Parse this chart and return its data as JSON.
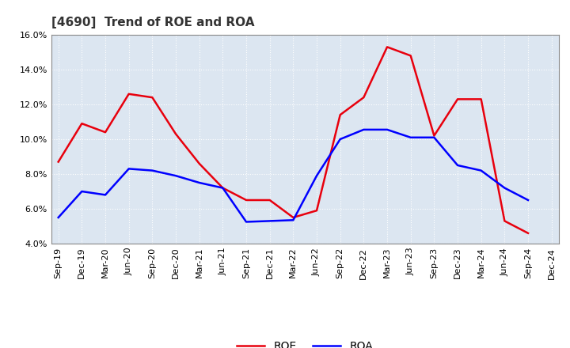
{
  "title": "[4690]  Trend of ROE and ROA",
  "x_labels": [
    "Sep-19",
    "Dec-19",
    "Mar-20",
    "Jun-20",
    "Sep-20",
    "Dec-20",
    "Mar-21",
    "Jun-21",
    "Sep-21",
    "Dec-21",
    "Mar-22",
    "Jun-22",
    "Sep-22",
    "Dec-22",
    "Mar-23",
    "Jun-23",
    "Sep-23",
    "Dec-23",
    "Mar-24",
    "Jun-24",
    "Sep-24",
    "Dec-24"
  ],
  "roe": [
    8.7,
    10.9,
    10.4,
    12.6,
    12.4,
    10.3,
    8.6,
    7.2,
    6.5,
    6.5,
    5.5,
    5.9,
    11.4,
    12.4,
    15.3,
    14.8,
    10.2,
    12.3,
    12.3,
    5.3,
    4.6,
    null
  ],
  "roa": [
    5.5,
    7.0,
    6.8,
    8.3,
    8.2,
    7.9,
    7.5,
    7.2,
    5.25,
    5.3,
    5.35,
    7.9,
    10.0,
    10.55,
    10.55,
    10.1,
    10.1,
    8.5,
    8.2,
    7.2,
    6.5,
    null
  ],
  "roe_color": "#e8000d",
  "roa_color": "#0000ff",
  "ylim": [
    4.0,
    16.0
  ],
  "yticks": [
    4.0,
    6.0,
    8.0,
    10.0,
    12.0,
    14.0,
    16.0
  ],
  "background_color": "#ffffff",
  "plot_bg_color": "#dce6f1",
  "grid_color": "#ffffff",
  "legend_labels": [
    "ROE",
    "ROA"
  ],
  "title_fontsize": 11,
  "axis_fontsize": 8
}
